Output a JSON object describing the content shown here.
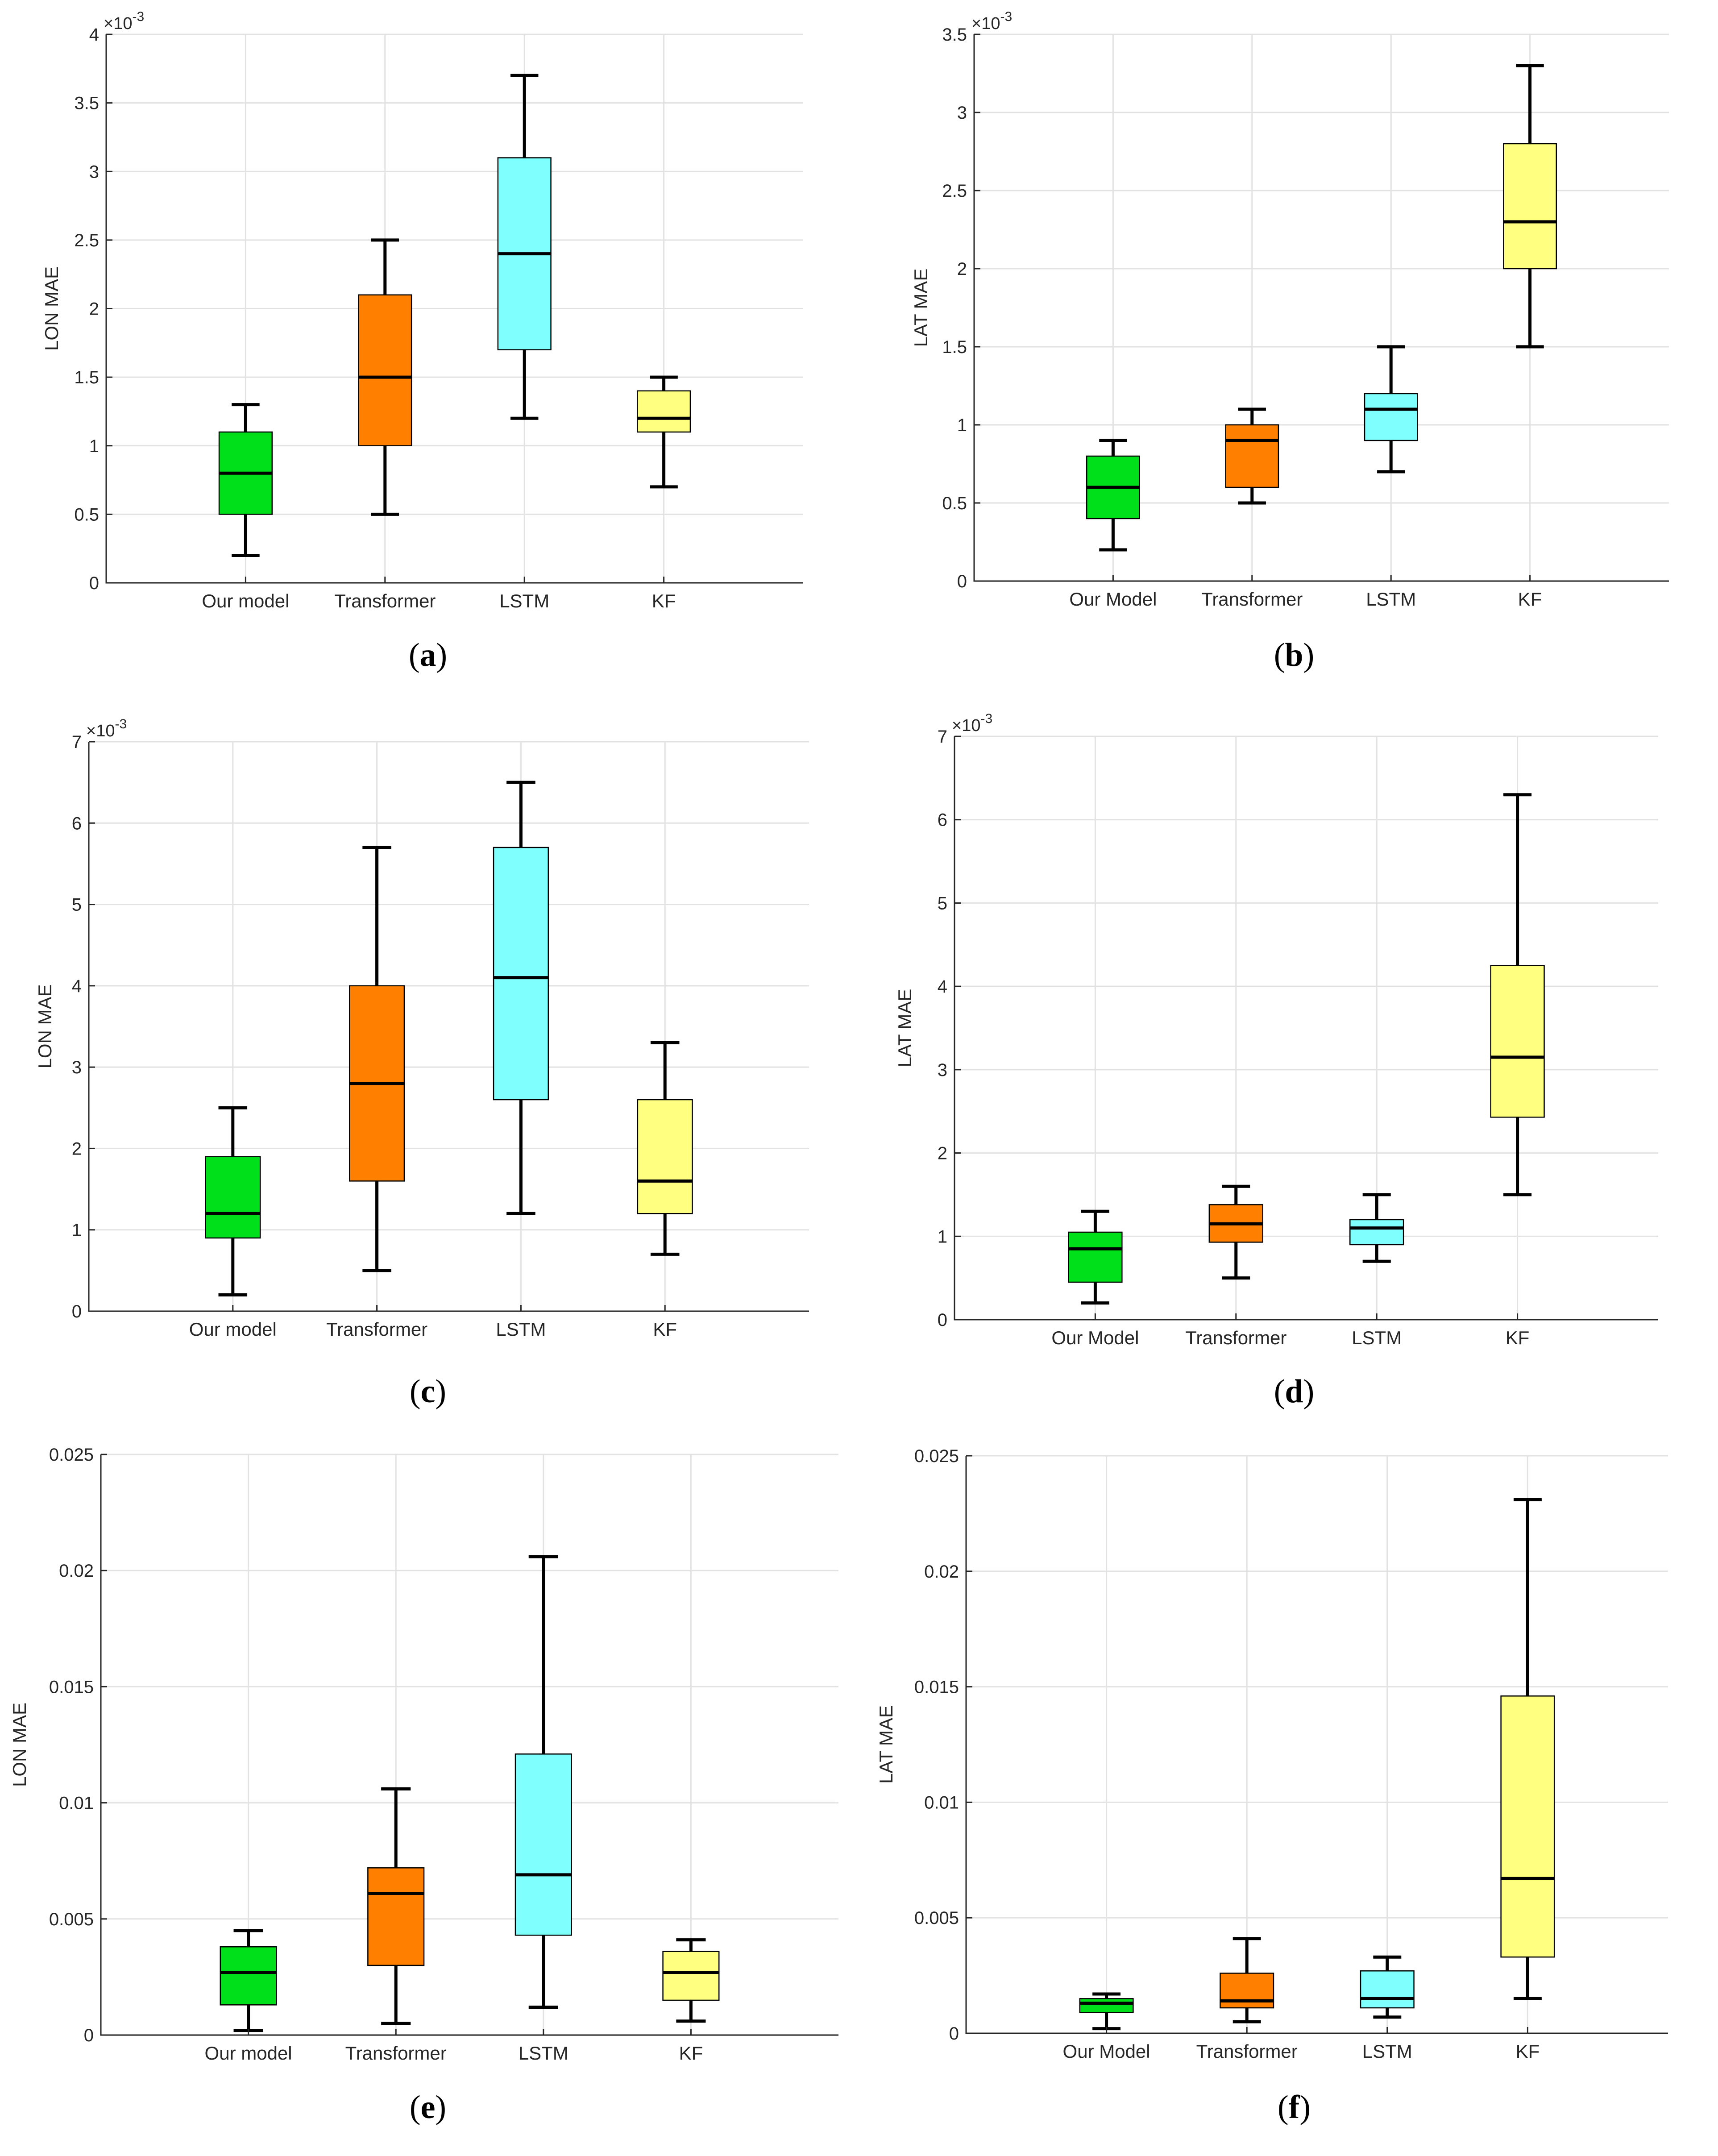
{
  "chart_data": [
    {
      "type": "box",
      "panel_label": "a",
      "ylabel": "LON  MAE",
      "exponent": "×10",
      "exponent_power": "-3",
      "ylim": [
        0,
        4
      ],
      "yticks": [
        "0",
        "0.5",
        "1",
        "1.5",
        "2",
        "2.5",
        "3",
        "3.5",
        "4"
      ],
      "ytick_values": [
        0,
        0.5,
        1,
        1.5,
        2,
        2.5,
        3,
        3.5,
        4
      ],
      "categories": [
        "Our model",
        "Transformer",
        "LSTM",
        "KF"
      ],
      "colors": [
        "#00e01a",
        "#ff7f00",
        "#80ffff",
        "#ffff80"
      ],
      "boxes": [
        {
          "min": 0.2,
          "q1": 0.5,
          "median": 0.8,
          "q3": 1.1,
          "max": 1.3
        },
        {
          "min": 0.5,
          "q1": 1.0,
          "median": 1.5,
          "q3": 2.1,
          "max": 2.5
        },
        {
          "min": 1.2,
          "q1": 1.7,
          "median": 2.4,
          "q3": 3.1,
          "max": 3.7
        },
        {
          "min": 0.7,
          "q1": 1.1,
          "median": 1.2,
          "q3": 1.4,
          "max": 1.5
        }
      ]
    },
    {
      "type": "box",
      "panel_label": "b",
      "ylabel": "LAT  MAE",
      "exponent": "×10",
      "exponent_power": "-3",
      "ylim": [
        0,
        3.5
      ],
      "yticks": [
        "0",
        "0.5",
        "1",
        "1.5",
        "2",
        "2.5",
        "3",
        "3.5"
      ],
      "ytick_values": [
        0,
        0.5,
        1,
        1.5,
        2,
        2.5,
        3,
        3.5
      ],
      "categories": [
        "Our Model",
        "Transformer",
        "LSTM",
        "KF"
      ],
      "colors": [
        "#00e01a",
        "#ff7f00",
        "#80ffff",
        "#ffff80"
      ],
      "boxes": [
        {
          "min": 0.2,
          "q1": 0.4,
          "median": 0.6,
          "q3": 0.8,
          "max": 0.9
        },
        {
          "min": 0.5,
          "q1": 0.6,
          "median": 0.9,
          "q3": 1.0,
          "max": 1.1
        },
        {
          "min": 0.7,
          "q1": 0.9,
          "median": 1.1,
          "q3": 1.2,
          "max": 1.5
        },
        {
          "min": 1.5,
          "q1": 2.0,
          "median": 2.3,
          "q3": 2.8,
          "max": 3.3
        }
      ]
    },
    {
      "type": "box",
      "panel_label": "c",
      "ylabel": "LON  MAE",
      "exponent": "×10",
      "exponent_power": "-3",
      "ylim": [
        0,
        7
      ],
      "yticks": [
        "0",
        "1",
        "2",
        "3",
        "4",
        "5",
        "6",
        "7"
      ],
      "ytick_values": [
        0,
        1,
        2,
        3,
        4,
        5,
        6,
        7
      ],
      "categories": [
        "Our model",
        "Transformer",
        "LSTM",
        "KF"
      ],
      "colors": [
        "#00e01a",
        "#ff7f00",
        "#80ffff",
        "#ffff80"
      ],
      "boxes": [
        {
          "min": 0.2,
          "q1": 0.9,
          "median": 1.2,
          "q3": 1.9,
          "max": 2.5
        },
        {
          "min": 0.5,
          "q1": 1.6,
          "median": 2.8,
          "q3": 4.0,
          "max": 5.7
        },
        {
          "min": 1.2,
          "q1": 2.6,
          "median": 4.1,
          "q3": 5.7,
          "max": 6.5
        },
        {
          "min": 0.7,
          "q1": 1.2,
          "median": 1.6,
          "q3": 2.6,
          "max": 3.3
        }
      ]
    },
    {
      "type": "box",
      "panel_label": "d",
      "ylabel": "LAT  MAE",
      "exponent": "×10",
      "exponent_power": "-3",
      "ylim": [
        0,
        7
      ],
      "yticks": [
        "0",
        "1",
        "2",
        "3",
        "4",
        "5",
        "6",
        "7"
      ],
      "ytick_values": [
        0,
        1,
        2,
        3,
        4,
        5,
        6,
        7
      ],
      "categories": [
        "Our Model",
        "Transformer",
        "LSTM",
        "KF"
      ],
      "colors": [
        "#00e01a",
        "#ff7f00",
        "#80ffff",
        "#ffff80"
      ],
      "boxes": [
        {
          "min": 0.2,
          "q1": 0.45,
          "median": 0.85,
          "q3": 1.05,
          "max": 1.3
        },
        {
          "min": 0.5,
          "q1": 0.93,
          "median": 1.15,
          "q3": 1.38,
          "max": 1.6
        },
        {
          "min": 0.7,
          "q1": 0.9,
          "median": 1.1,
          "q3": 1.2,
          "max": 1.5
        },
        {
          "min": 1.5,
          "q1": 2.43,
          "median": 3.15,
          "q3": 4.25,
          "max": 6.3
        }
      ]
    },
    {
      "type": "box",
      "panel_label": "e",
      "ylabel": "LON  MAE",
      "exponent": "",
      "exponent_power": "",
      "ylim": [
        0,
        0.025
      ],
      "yticks": [
        "0",
        "0.005",
        "0.01",
        "0.015",
        "0.02",
        "0.025"
      ],
      "ytick_values": [
        0,
        0.005,
        0.01,
        0.015,
        0.02,
        0.025
      ],
      "categories": [
        "Our model",
        "Transformer",
        "LSTM",
        "KF"
      ],
      "colors": [
        "#00e01a",
        "#ff7f00",
        "#80ffff",
        "#ffff80"
      ],
      "boxes": [
        {
          "min": 0.0002,
          "q1": 0.0013,
          "median": 0.0027,
          "q3": 0.0038,
          "max": 0.0045
        },
        {
          "min": 0.0005,
          "q1": 0.003,
          "median": 0.0061,
          "q3": 0.0072,
          "max": 0.0106
        },
        {
          "min": 0.0012,
          "q1": 0.0043,
          "median": 0.0069,
          "q3": 0.0121,
          "max": 0.0206
        },
        {
          "min": 0.0006,
          "q1": 0.0015,
          "median": 0.0027,
          "q3": 0.0036,
          "max": 0.0041
        }
      ]
    },
    {
      "type": "box",
      "panel_label": "f",
      "ylabel": "LAT  MAE",
      "exponent": "",
      "exponent_power": "",
      "ylim": [
        0,
        0.025
      ],
      "yticks": [
        "0",
        "0.005",
        "0.01",
        "0.015",
        "0.02",
        "0.025"
      ],
      "ytick_values": [
        0,
        0.005,
        0.01,
        0.015,
        0.02,
        0.025
      ],
      "categories": [
        "Our Model",
        "Transformer",
        "LSTM",
        "KF"
      ],
      "colors": [
        "#00e01a",
        "#ff7f00",
        "#80ffff",
        "#ffff80"
      ],
      "boxes": [
        {
          "min": 0.0002,
          "q1": 0.0009,
          "median": 0.0013,
          "q3": 0.0015,
          "max": 0.0017
        },
        {
          "min": 0.0005,
          "q1": 0.0011,
          "median": 0.0014,
          "q3": 0.0026,
          "max": 0.0041
        },
        {
          "min": 0.0007,
          "q1": 0.0011,
          "median": 0.0015,
          "q3": 0.0027,
          "max": 0.0033
        },
        {
          "min": 0.0015,
          "q1": 0.0033,
          "median": 0.0067,
          "q3": 0.0146,
          "max": 0.0231
        }
      ]
    }
  ]
}
